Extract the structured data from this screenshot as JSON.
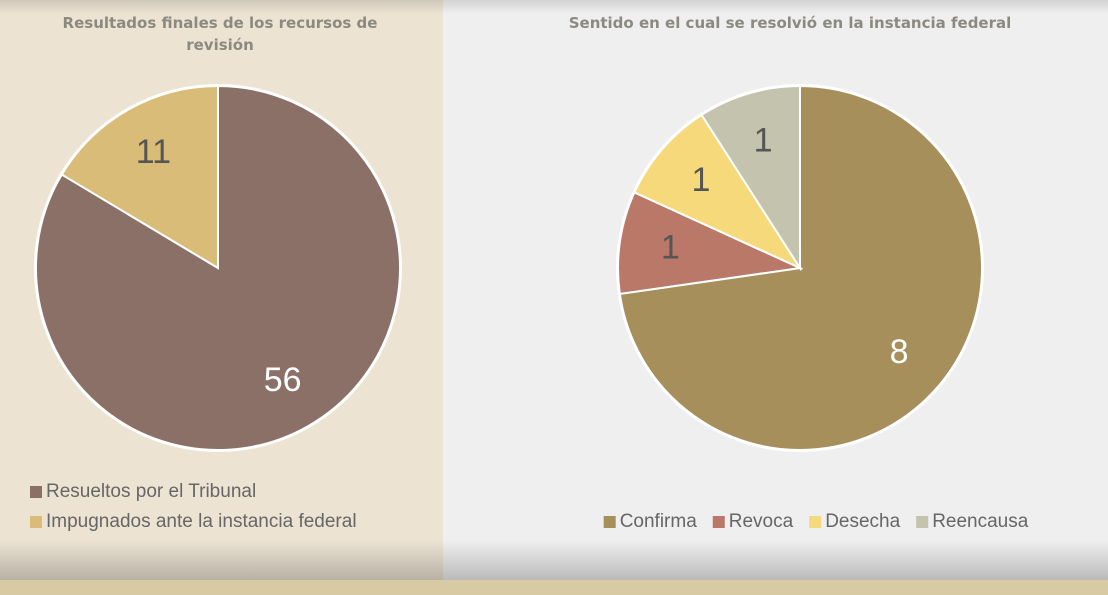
{
  "chart_data": [
    {
      "type": "pie",
      "title": "Resultados finales de los recursos de revisión",
      "categories": [
        "Resueltos por el Tribunal",
        "Impugnados ante la instancia federal"
      ],
      "values": [
        56,
        11
      ],
      "colors": [
        "#8b7068",
        "#d9bc78"
      ],
      "label_colors": [
        "#ffffff",
        "#555555"
      ],
      "legend": "bottom-left"
    },
    {
      "type": "pie",
      "title": "Sentido en el cual se resolvió en la instancia federal",
      "categories": [
        "Confirma",
        "Revoca",
        "Desecha",
        "Reencausa"
      ],
      "values": [
        8,
        1,
        1,
        1
      ],
      "colors": [
        "#a68f5a",
        "#b97868",
        "#f5d97a",
        "#c4c3ad"
      ],
      "label_colors": [
        "#ffffff",
        "#555555",
        "#555555",
        "#555555"
      ],
      "legend": "bottom"
    }
  ]
}
